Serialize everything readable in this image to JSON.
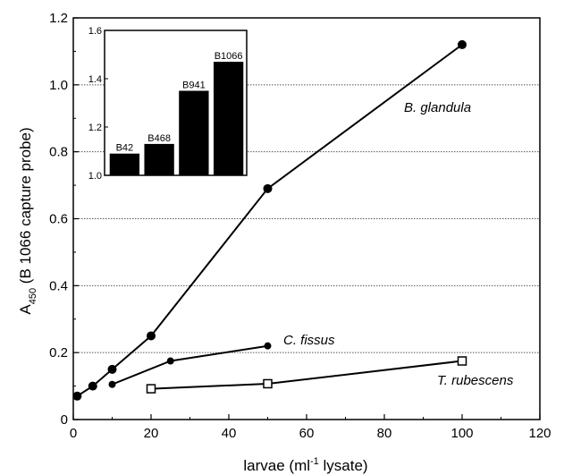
{
  "chart_data": [
    {
      "type": "line",
      "xlabel": "larvae (ml",
      "xlabel_sup": "-1",
      "xlabel_tail": " lysate)",
      "ylabel": "A",
      "ylabel_sub": "450",
      "ylabel_tail": " (B 1066 capture probe)",
      "xlim": [
        0,
        120
      ],
      "ylim": [
        0,
        1.2
      ],
      "xticks": [
        0,
        20,
        40,
        60,
        80,
        100,
        120
      ],
      "yticks": [
        0,
        0.2,
        0.4,
        0.6,
        0.8,
        1.0,
        1.2
      ],
      "ytick_labels": [
        "0",
        "0.2",
        "0.4",
        "0.6",
        "0.8",
        "1.0",
        "1.2"
      ],
      "grid": "horizontal dotted",
      "series": [
        {
          "name": "B. glandula",
          "marker": "filled-circle",
          "x": [
            1,
            5,
            10,
            20,
            50,
            100
          ],
          "y": [
            0.07,
            0.1,
            0.15,
            0.25,
            0.69,
            1.12
          ]
        },
        {
          "name": "C. fissus",
          "marker": "filled-diamond",
          "x": [
            10,
            25,
            50
          ],
          "y": [
            0.105,
            0.175,
            0.22
          ]
        },
        {
          "name": "T. rubescens",
          "marker": "open-square",
          "x": [
            20,
            50,
            100
          ],
          "y": [
            0.092,
            0.107,
            0.175
          ]
        }
      ]
    },
    {
      "type": "bar",
      "inset": true,
      "categories": [
        "B42",
        "B468",
        "B941",
        "B1066"
      ],
      "values": [
        1.09,
        1.13,
        1.35,
        1.47
      ],
      "ylim": [
        1.0,
        1.6
      ],
      "yticks": [
        1.0,
        1.2,
        1.4,
        1.6
      ],
      "ytick_labels": [
        "1.0",
        "1.2",
        "1.4",
        "1.6"
      ],
      "color": "#000000"
    }
  ]
}
